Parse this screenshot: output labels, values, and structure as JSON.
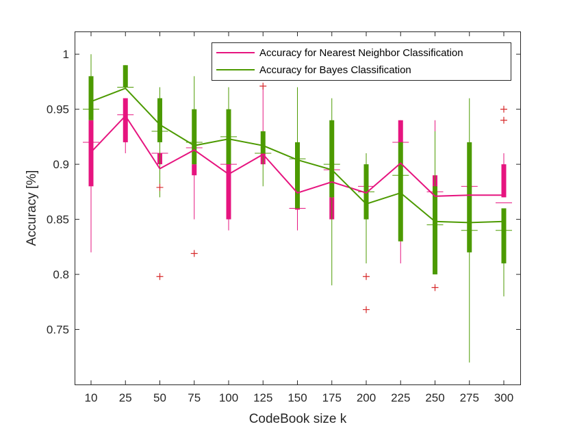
{
  "chart_data": {
    "type": "box",
    "xlabel": "CodeBook size k",
    "ylabel": "Accuracy [%]",
    "ylim": [
      0.7,
      1.02
    ],
    "yticks": [
      0.75,
      0.8,
      0.85,
      0.9,
      0.95,
      1
    ],
    "ytick_labels": [
      "0.75",
      "0.8",
      "0.85",
      "0.9",
      "0.95",
      "1"
    ],
    "categories": [
      "10",
      "25",
      "50",
      "75",
      "100",
      "125",
      "150",
      "175",
      "200",
      "225",
      "250",
      "275",
      "300"
    ],
    "grid": false,
    "legend_position": "top-right",
    "series": [
      {
        "name": "Accuracy for Nearest Neighbor Classification",
        "color": "#e6147f",
        "mean": [
          0.911,
          0.944,
          0.896,
          0.913,
          0.891,
          0.909,
          0.874,
          0.884,
          0.874,
          0.901,
          0.871,
          0.872,
          0.872
        ],
        "q1": [
          0.88,
          0.92,
          0.9,
          0.89,
          0.85,
          0.9,
          0.86,
          0.85,
          0.87,
          0.92,
          0.87,
          0.88,
          0.87
        ],
        "q3": [
          0.94,
          0.96,
          0.91,
          0.9,
          0.9,
          0.91,
          0.86,
          0.87,
          0.88,
          0.94,
          0.89,
          0.88,
          0.9
        ],
        "median": [
          0.92,
          0.945,
          0.91,
          0.915,
          0.9,
          0.91,
          0.86,
          0.895,
          0.88,
          0.92,
          0.875,
          0.88,
          0.865
        ],
        "whisker_low": [
          0.82,
          0.91,
          0.9,
          0.85,
          0.84,
          0.9,
          0.84,
          0.85,
          0.87,
          0.81,
          0.87,
          0.88,
          0.87
        ],
        "whisker_high": [
          0.94,
          0.96,
          0.91,
          0.9,
          0.9,
          0.97,
          0.86,
          0.87,
          0.88,
          0.94,
          0.94,
          0.88,
          0.91
        ],
        "outliers": [
          [],
          [],
          [
            0.798,
            0.879
          ],
          [
            0.819
          ],
          [],
          [
            0.971
          ],
          [],
          [],
          [
            0.768,
            0.798
          ],
          [],
          [
            0.788
          ],
          [],
          [
            0.94,
            0.95
          ]
        ]
      },
      {
        "name": "Accuracy for Bayes Classification",
        "color": "#4c9a00",
        "mean": [
          0.957,
          0.969,
          0.936,
          0.917,
          0.923,
          0.917,
          0.904,
          0.895,
          0.864,
          0.874,
          0.848,
          0.847,
          0.848
        ],
        "q1": [
          0.94,
          0.97,
          0.92,
          0.9,
          0.9,
          0.91,
          0.86,
          0.87,
          0.85,
          0.83,
          0.8,
          0.82,
          0.81
        ],
        "q3": [
          0.98,
          0.99,
          0.96,
          0.95,
          0.95,
          0.93,
          0.92,
          0.94,
          0.9,
          0.92,
          0.88,
          0.92,
          0.86
        ],
        "median": [
          0.95,
          0.97,
          0.93,
          0.92,
          0.925,
          0.91,
          0.905,
          0.9,
          0.875,
          0.89,
          0.845,
          0.84,
          0.84
        ],
        "whisker_low": [
          0.94,
          0.97,
          0.87,
          0.9,
          0.9,
          0.88,
          0.86,
          0.79,
          0.81,
          0.83,
          0.8,
          0.72,
          0.78
        ],
        "whisker_high": [
          1.0,
          0.99,
          0.97,
          0.98,
          0.97,
          0.93,
          0.97,
          0.96,
          0.91,
          0.92,
          0.93,
          0.96,
          0.86
        ],
        "outliers": [
          [],
          [],
          [],
          [],
          [],
          [],
          [],
          [],
          [],
          [],
          [],
          [],
          []
        ]
      }
    ],
    "outlier_color": "#d62728"
  }
}
